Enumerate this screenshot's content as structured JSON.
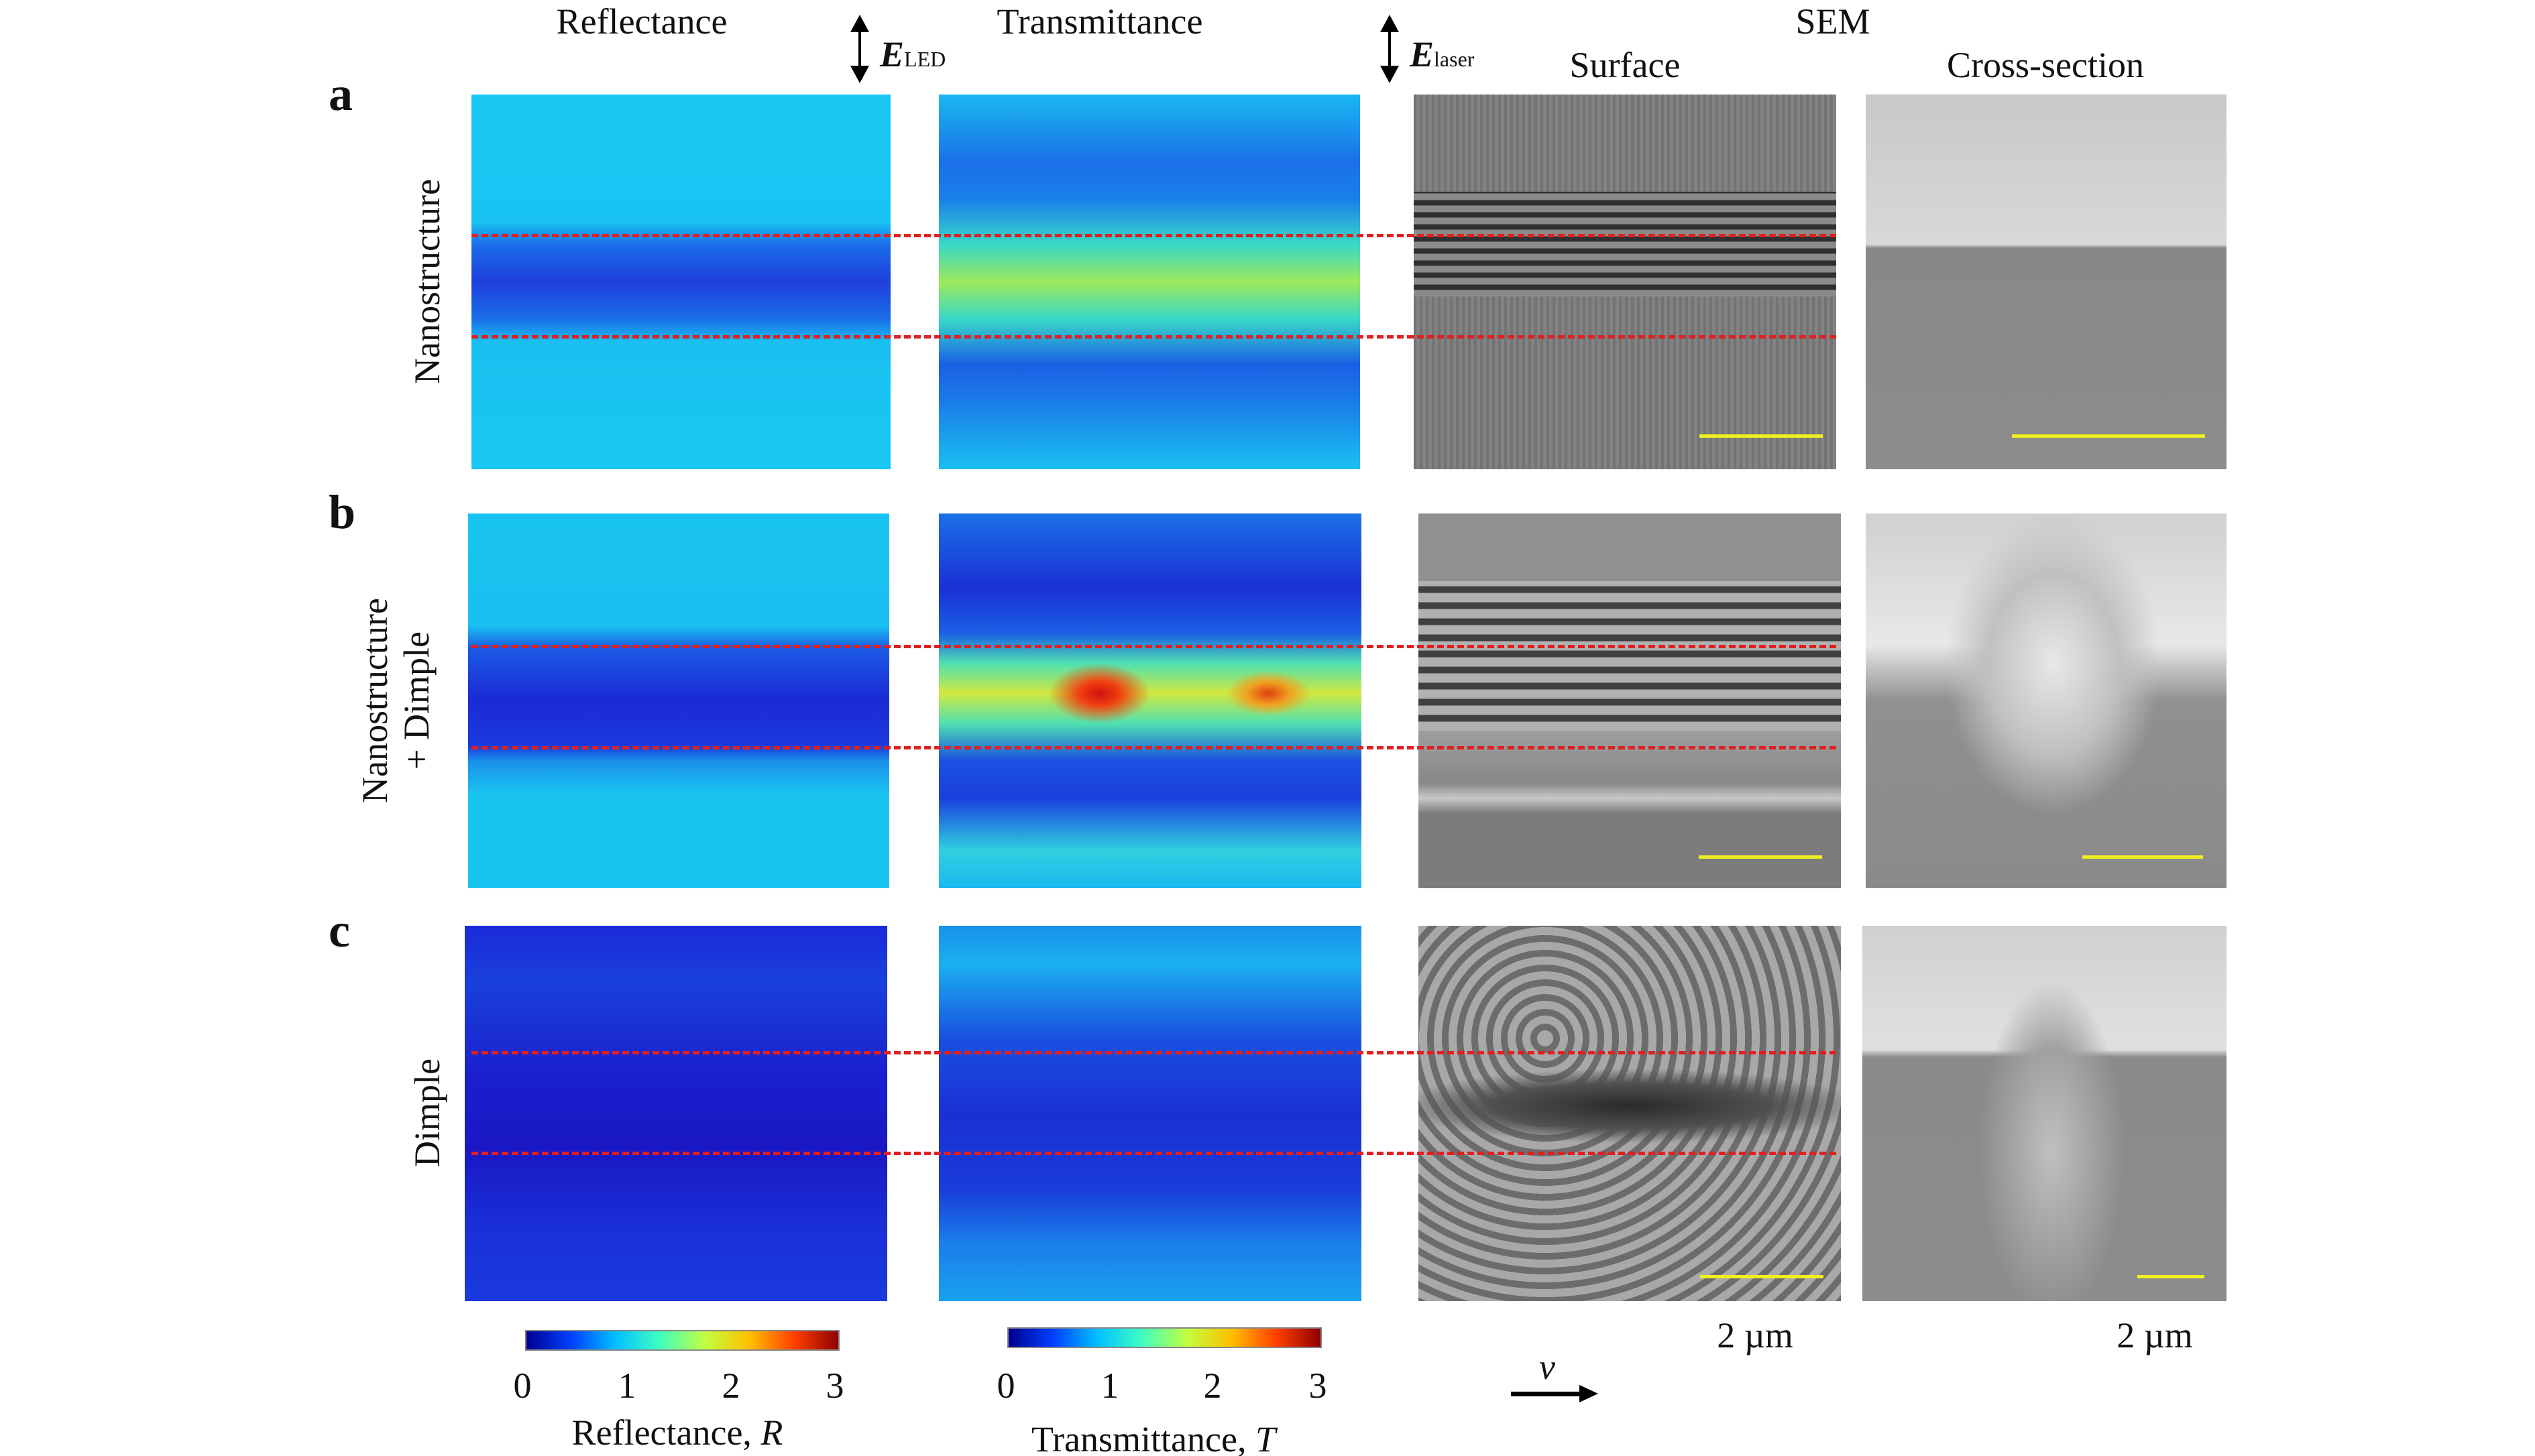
{
  "headers": {
    "reflectance": "Reflectance",
    "transmittance": "Transmittance",
    "sem": "SEM",
    "surface": "Surface",
    "cross_section": "Cross-section"
  },
  "polarization": {
    "led_E": "E",
    "led_sub": "LED",
    "laser_E": "E",
    "laser_sub": "laser"
  },
  "rows": [
    {
      "letter": "a",
      "label_line1": "Nanostructure",
      "label_line2": ""
    },
    {
      "letter": "b",
      "label_line1": "Nanostructure",
      "label_line2": "+ Dimple"
    },
    {
      "letter": "c",
      "label_line1": "Dimple",
      "label_line2": ""
    }
  ],
  "colorbars": {
    "reflectance": {
      "ticks": [
        "0",
        "1",
        "2",
        "3"
      ],
      "label": "Reflectance, ",
      "symbol": "R"
    },
    "transmittance": {
      "ticks": [
        "0",
        "1",
        "2",
        "3"
      ],
      "label": "Transmittance, ",
      "symbol": "T"
    }
  },
  "scale": {
    "surface": "2 µm",
    "cross_section": "2 µm"
  },
  "velocity": {
    "symbol": "v"
  },
  "colors": {
    "dashed_line": "#e02020",
    "scale_bar": "#f0f020"
  }
}
